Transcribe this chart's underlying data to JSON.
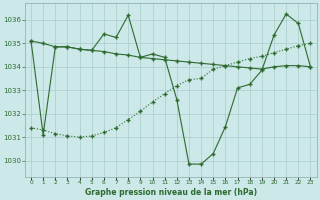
{
  "bg_color": "#cce8e8",
  "grid_color": "#aacccc",
  "line_color": "#2d6a2d",
  "title": "Graphe pression niveau de la mer (hPa)",
  "hours": [
    0,
    1,
    2,
    3,
    4,
    5,
    6,
    7,
    8,
    9,
    10,
    11,
    12,
    13,
    14,
    15,
    16,
    17,
    18,
    19,
    20,
    21,
    22,
    23
  ],
  "ylim": [
    1029.3,
    1036.7
  ],
  "yticks": [
    1030,
    1031,
    1032,
    1033,
    1034,
    1035,
    1036
  ],
  "series_flat": [
    1035.1,
    1035.0,
    1034.85,
    1034.85,
    1034.75,
    1034.7,
    1034.65,
    1034.55,
    1034.5,
    1034.4,
    1034.35,
    1034.3,
    1034.25,
    1034.2,
    1034.15,
    1034.1,
    1034.05,
    1034.0,
    1033.95,
    1033.9,
    1034.0,
    1034.05,
    1034.05,
    1034.0
  ],
  "series_zigzag": [
    1035.1,
    1031.1,
    1034.85,
    1034.85,
    1034.75,
    1034.7,
    1035.4,
    1035.25,
    1036.2,
    1034.4,
    1034.55,
    1034.4,
    1032.6,
    1029.85,
    1029.85,
    1030.3,
    1031.45,
    1033.1,
    1033.25,
    1033.85,
    1035.35,
    1036.25,
    1035.85,
    1034.0
  ],
  "series_diag": [
    1031.4,
    1031.3,
    1031.15,
    1031.05,
    1031.0,
    1031.05,
    1031.2,
    1031.4,
    1031.75,
    1032.1,
    1032.5,
    1032.85,
    1033.2,
    1033.45,
    1033.5,
    1033.9,
    1034.05,
    1034.2,
    1034.35,
    1034.45,
    1034.6,
    1034.75,
    1034.9,
    1035.0
  ]
}
